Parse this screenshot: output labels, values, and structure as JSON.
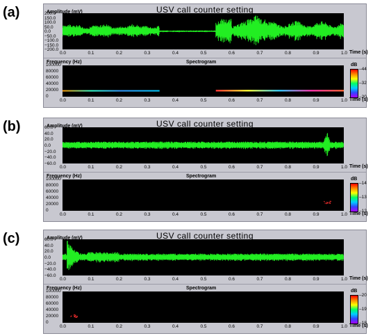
{
  "panels": [
    {
      "label": "(a)",
      "title": "USV call counter setting",
      "amp_label": "Amplitude (mV)",
      "amp_ticks": [
        "200.0",
        "150.0",
        "100.0",
        "50.0",
        "0.0",
        "−50.0",
        "−100.0",
        "−150.0",
        "−200.0"
      ],
      "time_ticks": [
        "0.0",
        "0.1",
        "0.2",
        "0.3",
        "0.4",
        "0.5",
        "0.6",
        "0.7",
        "0.8",
        "0.9",
        "1.0"
      ],
      "time_label": "Time (s)",
      "freq_label": "Frequency (Hz)",
      "spec_title": "Spectrogram",
      "freq_ticks": [
        "100000",
        "80000",
        "60000",
        "40000",
        "20000",
        "0"
      ],
      "cbar_unit": "dB",
      "cbar_ticks": [
        "44",
        "32",
        "20"
      ]
    },
    {
      "label": "(b)",
      "title": "USV call counter setting",
      "amp_label": "Amplitude (mV)",
      "amp_ticks": [
        "60.0",
        "40.0",
        "20.0",
        "0.0",
        "−20.0",
        "−40.0",
        "−60.0"
      ],
      "time_ticks": [
        "0.0",
        "0.1",
        "0.2",
        "0.3",
        "0.4",
        "0.5",
        "0.6",
        "0.7",
        "0.8",
        "0.9",
        "1.0"
      ],
      "time_label": "Time (s)",
      "freq_label": "Frequency (Hz)",
      "spec_title": "Spectrogram",
      "freq_ticks": [
        "100000",
        "80000",
        "60000",
        "40000",
        "20000",
        "0"
      ],
      "cbar_unit": "dB",
      "cbar_ticks": [
        "14",
        "13",
        "12"
      ]
    },
    {
      "label": "(c)",
      "title": "USV call counter setting",
      "amp_label": "Amplitude (mV)",
      "amp_ticks": [
        "60.0",
        "40.0",
        "20.0",
        "0.0",
        "−20.0",
        "−40.0",
        "−60.0"
      ],
      "time_ticks": [
        "0.0",
        "0.1",
        "0.2",
        "0.3",
        "0.4",
        "0.5",
        "0.6",
        "0.7",
        "0.8",
        "0.9",
        "1.0"
      ],
      "time_label": "Time (s)",
      "freq_label": "Frequency (Hz)",
      "spec_title": "Spectrogram",
      "freq_ticks": [
        "100000",
        "80000",
        "60000",
        "40000",
        "20000",
        "0"
      ],
      "cbar_unit": "dB",
      "cbar_ticks": [
        "20",
        "19",
        "18"
      ]
    }
  ],
  "colors": {
    "waveform": "#22ee22",
    "plot_bg": "#000000",
    "window_bg": "#c8c8d0",
    "spec_mark": "#ff3030"
  }
}
